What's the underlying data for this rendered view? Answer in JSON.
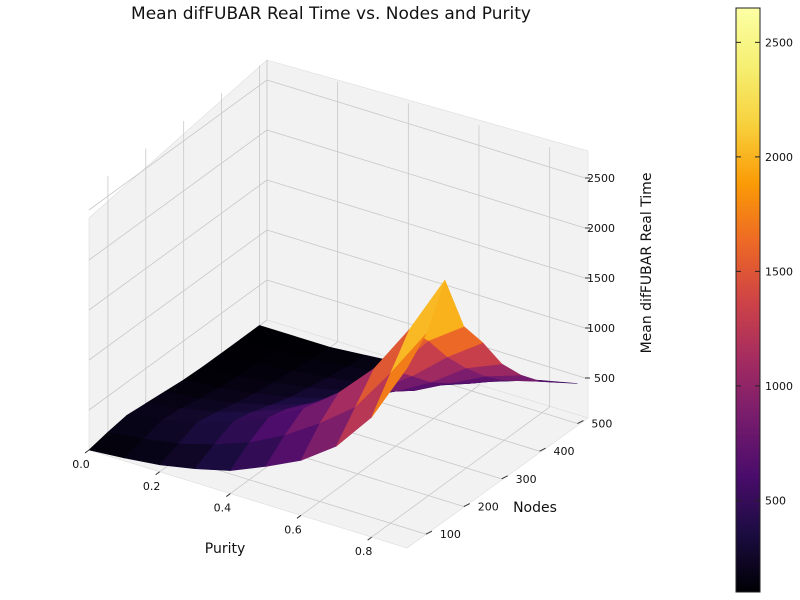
{
  "chart_data": {
    "type": "surface",
    "title": "Mean difFUBAR Real Time vs. Nodes and Purity",
    "xlabel": "Purity",
    "ylabel": "Nodes",
    "zlabel": "Mean difFUBAR Real Time",
    "x_ticks": [
      "0.0",
      "0.2",
      "0.4",
      "0.6",
      "0.8"
    ],
    "y_ticks": [
      "100",
      "200",
      "300",
      "400",
      "500"
    ],
    "z_ticks": [
      "500",
      "1000",
      "1500",
      "2000",
      "2500"
    ],
    "colorbar_ticks": [
      "500",
      "1000",
      "1500",
      "2000",
      "2500"
    ],
    "xlim": [
      0,
      0.9
    ],
    "ylim": [
      50,
      520
    ],
    "zlim": [
      100,
      2700
    ],
    "colorbar_range": [
      100,
      2650
    ],
    "colormap": "inferno",
    "grid": true,
    "x": [
      0.0,
      0.1,
      0.2,
      0.3,
      0.4,
      0.5,
      0.6,
      0.7,
      0.8,
      0.9
    ],
    "y": [
      50,
      100,
      150,
      200,
      250,
      300,
      350,
      400,
      450,
      500
    ],
    "z": [
      [
        100,
        130,
        170,
        240,
        330,
        480,
        650,
        900,
        1300,
        1900
      ],
      [
        140,
        180,
        240,
        340,
        470,
        650,
        880,
        1150,
        1600,
        2100
      ],
      [
        170,
        230,
        320,
        430,
        580,
        780,
        1050,
        1400,
        1900,
        2500
      ],
      [
        150,
        210,
        280,
        390,
        530,
        720,
        960,
        1250,
        1650,
        1900
      ],
      [
        130,
        170,
        230,
        320,
        440,
        600,
        800,
        1050,
        1350,
        1600
      ],
      [
        110,
        140,
        190,
        260,
        360,
        480,
        650,
        850,
        1100,
        1250
      ],
      [
        100,
        120,
        160,
        220,
        300,
        400,
        520,
        700,
        880,
        1000
      ],
      [
        100,
        110,
        140,
        180,
        240,
        320,
        430,
        560,
        700,
        800
      ],
      [
        100,
        100,
        120,
        150,
        200,
        260,
        340,
        440,
        560,
        650
      ],
      [
        100,
        100,
        100,
        130,
        160,
        210,
        270,
        340,
        420,
        500
      ]
    ]
  }
}
